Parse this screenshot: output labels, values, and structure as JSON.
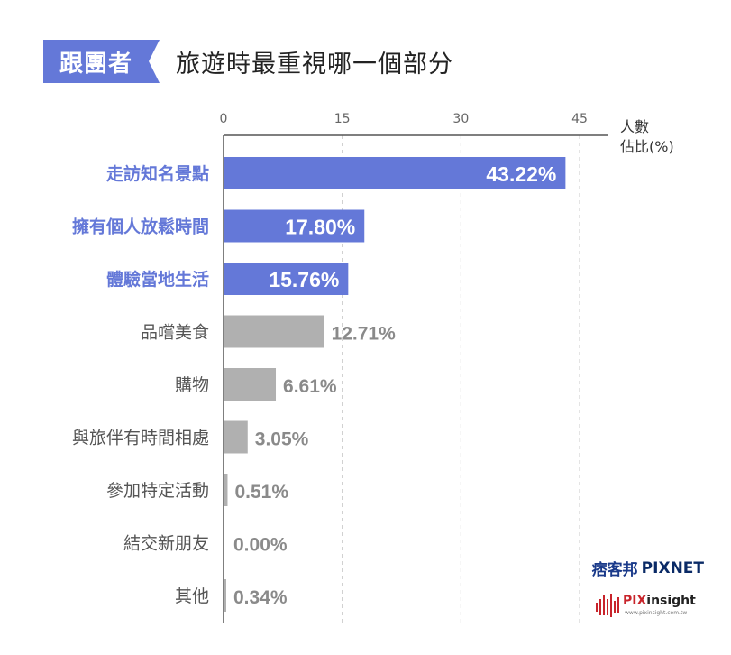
{
  "header": {
    "tag": "跟團者",
    "title": "旅遊時最重視哪一個部分"
  },
  "colors": {
    "highlight": "#6478d8",
    "normal": "#b0b0b0",
    "label_normal": "#555555",
    "axis": "#666666"
  },
  "chart_data": {
    "type": "bar",
    "orientation": "horizontal",
    "unit_label": "人數佔比(%)",
    "unit_label_lines": [
      "人數",
      "佔比(%)"
    ],
    "xlim": [
      0,
      45
    ],
    "xticks": [
      0,
      15,
      30,
      45
    ],
    "grid": "vertical dashed",
    "categories": [
      "走訪知名景點",
      "擁有個人放鬆時間",
      "體驗當地生活",
      "品嚐美食",
      "購物",
      "與旅伴有時間相處",
      "參加特定活動",
      "結交新朋友",
      "其他"
    ],
    "values": [
      43.22,
      17.8,
      15.76,
      12.71,
      6.61,
      3.05,
      0.51,
      0.0,
      0.34
    ],
    "value_labels": [
      "43.22%",
      "17.80%",
      "15.76%",
      "12.71%",
      "6.61%",
      "3.05%",
      "0.51%",
      "0.00%",
      "0.34%"
    ],
    "highlighted": [
      true,
      true,
      true,
      false,
      false,
      false,
      false,
      false,
      false
    ]
  },
  "logos": {
    "pixnet_cn": "痞客邦",
    "pixnet_en": "PIXNET",
    "pixinsight_pix": "PIX",
    "pixinsight_rest": "insight",
    "pixinsight_url": "www.pixinsight.com.tw"
  }
}
